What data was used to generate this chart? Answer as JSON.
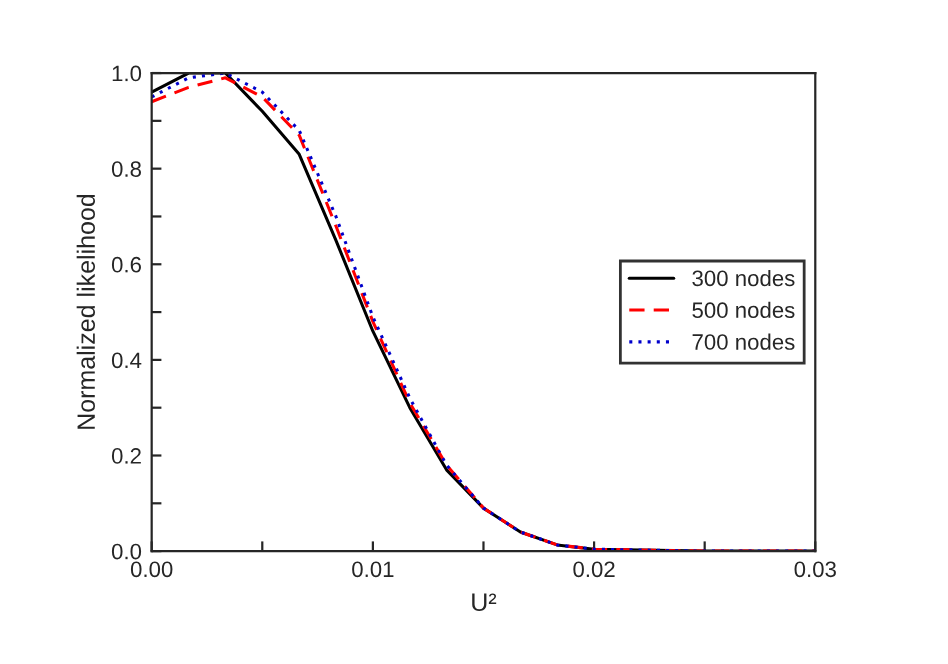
{
  "chart_data": {
    "type": "line",
    "xlabel": "U²",
    "ylabel": "Normalized likelihood",
    "xlim": [
      0,
      0.03
    ],
    "ylim": [
      0,
      1.0
    ],
    "xticks": [
      {
        "value": 0,
        "label": "0.00"
      },
      {
        "value": 0.005,
        "label": null
      },
      {
        "value": 0.01,
        "label": "0.01"
      },
      {
        "value": 0.015,
        "label": null
      },
      {
        "value": 0.02,
        "label": "0.02"
      },
      {
        "value": 0.025,
        "label": null
      },
      {
        "value": 0.03,
        "label": "0.03"
      }
    ],
    "yticks": [
      {
        "value": 0,
        "label": "0.0"
      },
      {
        "value": 0.1,
        "label": null
      },
      0.2,
      {
        "value": 0.3,
        "label": null
      },
      0.4,
      {
        "value": 0.5,
        "label": null
      },
      0.6,
      {
        "value": 0.7,
        "label": null
      },
      0.8,
      {
        "value": 0.9,
        "label": null
      },
      {
        "value": 1.0,
        "label": "1.0"
      }
    ],
    "x": [
      0,
      0.00167,
      0.00333,
      0.005,
      0.00667,
      0.00833,
      0.01,
      0.01167,
      0.01333,
      0.015,
      0.01667,
      0.01833,
      0.02,
      0.025,
      0.03
    ],
    "grid": false,
    "legend": "right",
    "marker": "none",
    "series": [
      {
        "name": "300 nodes",
        "color": "#000000",
        "line_style": "solid",
        "values": [
          0.96,
          1.0,
          1.0,
          0.92,
          0.83,
          0.65,
          0.46,
          0.3,
          0.17,
          0.09,
          0.04,
          0.013,
          0.004,
          0,
          0
        ]
      },
      {
        "name": "500 nodes",
        "color": "#ff0000",
        "line_style": "dashed",
        "values": [
          0.94,
          0.97,
          0.99,
          0.95,
          0.87,
          0.68,
          0.48,
          0.31,
          0.18,
          0.09,
          0.04,
          0.013,
          0.004,
          0,
          0
        ]
      },
      {
        "name": "700 nodes",
        "color": "#0000cc",
        "line_style": "dotted",
        "values": [
          0.95,
          0.99,
          1.0,
          0.96,
          0.88,
          0.7,
          0.49,
          0.32,
          0.18,
          0.09,
          0.04,
          0.013,
          0.004,
          0,
          0
        ]
      }
    ]
  }
}
